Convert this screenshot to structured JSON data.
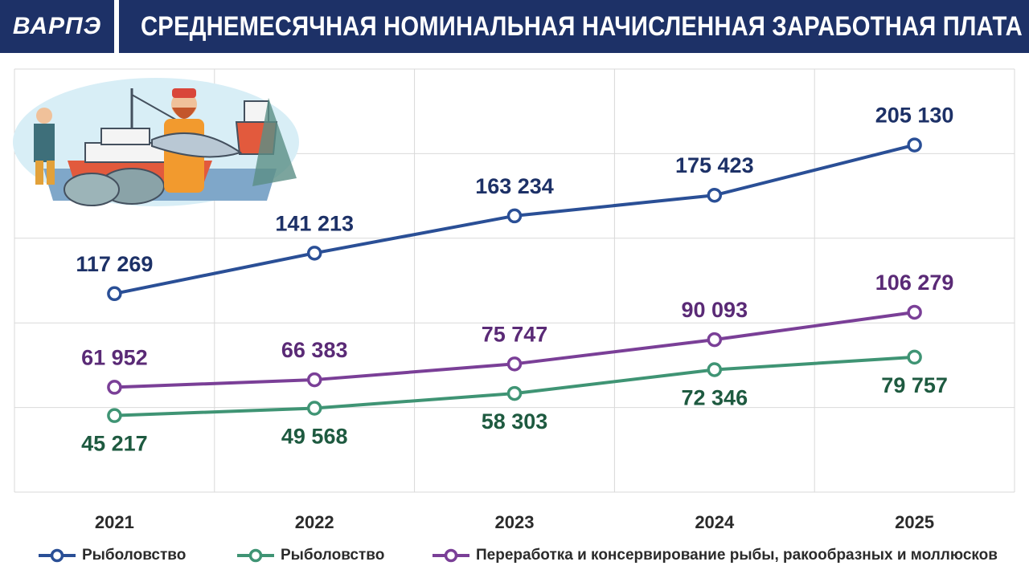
{
  "header": {
    "logo": "ВАРПЭ",
    "title": "СРЕДНЕМЕСЯЧНАЯ НОМИНАЛЬНАЯ НАЧИСЛЕННАЯ ЗАРАБОТНАЯ ПЛАТА"
  },
  "colors": {
    "header_bg": "#1d3167",
    "series_blue": "#2a4f96",
    "series_green": "#3f9474",
    "series_purple": "#7a3f97",
    "label_blue": "#1d3167",
    "label_green": "#1e5a40",
    "label_purple": "#5a2a76"
  },
  "chart_data": {
    "type": "line",
    "x": [
      "2021",
      "2022",
      "2023",
      "2024",
      "2025"
    ],
    "ylim": [
      0,
      250000
    ],
    "grid": true,
    "legend_position": "bottom",
    "series": [
      {
        "name": "Рыболовство",
        "color": "#2a4f96",
        "values": [
          117269,
          141213,
          163234,
          175423,
          205130
        ],
        "labels": [
          "117 269",
          "141 213",
          "163 234",
          "175 423",
          "205 130"
        ],
        "label_pos": "above"
      },
      {
        "name": "Рыболовство",
        "color": "#3f9474",
        "values": [
          45217,
          49568,
          58303,
          72346,
          79757
        ],
        "labels": [
          "45 217",
          "49 568",
          "58 303",
          "72 346",
          "79 757"
        ],
        "label_pos": "below"
      },
      {
        "name": "Переработка и консервирование рыбы, ракообразных и моллюсков",
        "color": "#7a3f97",
        "values": [
          61952,
          66383,
          75747,
          90093,
          106279
        ],
        "labels": [
          "61 952",
          "66 383",
          "75 747",
          "90 093",
          "106 279"
        ],
        "label_pos": "above"
      }
    ]
  },
  "legend": [
    {
      "label": "Рыболовство"
    },
    {
      "label": "Рыболовство"
    },
    {
      "label": "Переработка и консервирование рыбы, ракообразных и моллюсков"
    }
  ],
  "illustration": {
    "icon": "fishermen-boat-illustration"
  }
}
